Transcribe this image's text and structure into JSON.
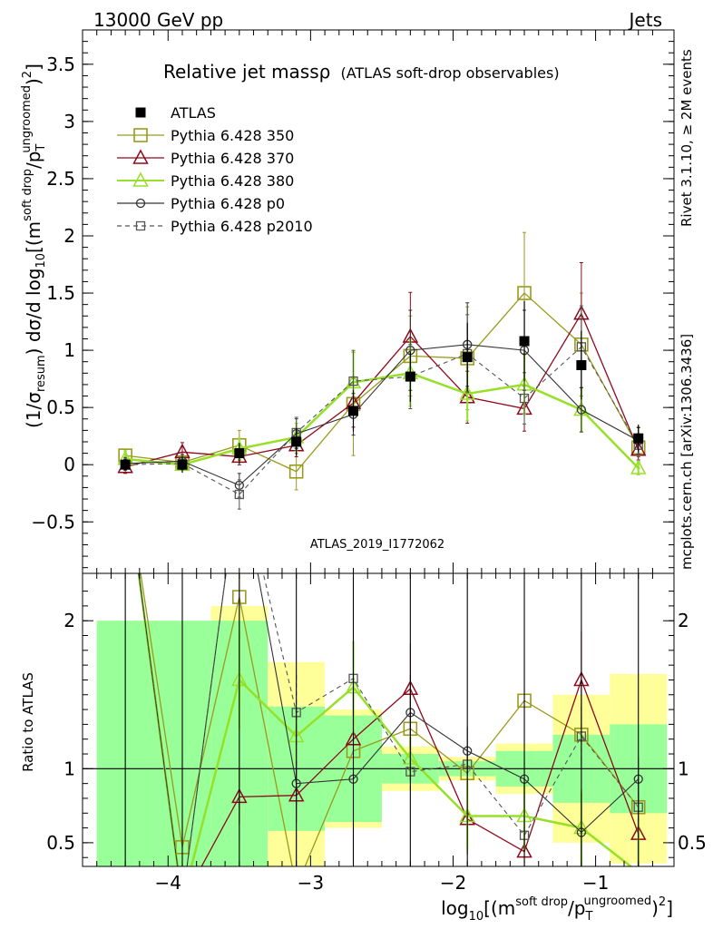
{
  "header": {
    "left": "13000 GeV pp",
    "right": "Jets"
  },
  "side": {
    "top": "Rivet 3.1.10, ≥ 2M events",
    "bottom": "mcplots.cern.ch [arXiv:1306.3436]"
  },
  "colors": {
    "atlas": "#000000",
    "p350": "#9a9a1e",
    "p370": "#8c0a1e",
    "p380": "#96e028",
    "p0": "#333333",
    "p2010": "#555555",
    "band_green": "#99ff99",
    "band_yellow": "#ffff99"
  },
  "chart_data": [
    {
      "type": "line",
      "title": "Relative jet massρ (ATLAS soft-drop observables)",
      "title_main": "Relative jet massρ",
      "title_sub": "(ATLAS soft-drop observables)",
      "ylabel": "(1/σresum) dσ/d log10[(m^(soft drop)/pT^(ungroomed))^2]",
      "ylabel_parts": {
        "a": "(1/σ",
        "a_sub": "resum",
        "b": ") dσ/d log",
        "b_sub": "10",
        "c": "[(m",
        "c_sup": "soft drop",
        "d": "/p",
        "d_sub": "T",
        "d_sup": "ungroomed",
        "e": ")",
        "e_sup": "2",
        "f": "]"
      },
      "analysis_id": "ATLAS_2019_I1772062",
      "xlim": [
        -4.6,
        -0.45
      ],
      "ylim": [
        -0.95,
        3.8
      ],
      "yticks": [
        -0.5,
        0,
        0.5,
        1,
        1.5,
        2,
        2.5,
        3,
        3.5
      ],
      "ytick_labels": [
        "−0.5",
        "0",
        "0.5",
        "1",
        "1.5",
        "2",
        "2.5",
        "3",
        "3.5"
      ],
      "x": [
        -4.3,
        -3.9,
        -3.5,
        -3.1,
        -2.7,
        -2.3,
        -1.9,
        -1.5,
        -1.1,
        -0.7
      ],
      "legend": {
        "placement": "top-left"
      },
      "series": [
        {
          "name": "ATLAS",
          "key": "atlas",
          "style": "data",
          "values": [
            0.0,
            0.0,
            0.1,
            0.2,
            0.47,
            0.77,
            0.94,
            1.08,
            0.87,
            0.23
          ],
          "errors": [
            0.05,
            0.07,
            0.09,
            0.12,
            0.18,
            0.22,
            0.3,
            0.35,
            0.3,
            0.12
          ]
        },
        {
          "name": "Pythia 6.428 350",
          "key": "p350",
          "style": "square-open",
          "values": [
            0.08,
            0.02,
            0.17,
            -0.06,
            0.53,
            0.95,
            0.93,
            1.5,
            1.05,
            0.15
          ],
          "errors": [
            0.05,
            0.07,
            0.13,
            0.16,
            0.45,
            0.35,
            0.45,
            0.53,
            0.45,
            0.18
          ]
        },
        {
          "name": "Pythia 6.428 370",
          "key": "p370",
          "style": "triangle-open",
          "values": [
            -0.02,
            0.11,
            0.07,
            0.17,
            0.54,
            1.12,
            0.59,
            0.49,
            1.32,
            0.13
          ]
        },
        {
          "name": "Pythia 6.428 380",
          "key": "p380",
          "style": "triangle-open-thick",
          "values": [
            0.05,
            0.0,
            0.14,
            0.24,
            0.72,
            0.8,
            0.62,
            0.7,
            0.48,
            -0.03
          ]
        },
        {
          "name": "Pythia 6.428 p0",
          "key": "p0",
          "style": "circle-open",
          "values": [
            0.01,
            0.03,
            -0.18,
            0.27,
            0.44,
            1.0,
            1.05,
            1.0,
            0.48,
            0.21
          ]
        },
        {
          "name": "Pythia 6.428 p2010",
          "key": "p2010",
          "style": "square-open-dashed",
          "values": [
            0.0,
            0.01,
            -0.26,
            0.28,
            0.73,
            0.77,
            0.97,
            0.58,
            1.03,
            0.17
          ]
        }
      ]
    },
    {
      "type": "line",
      "ylabel": "Ratio to ATLAS",
      "xlabel": "log10[(m^(soft drop)/pT^(ungroomed))^2]",
      "xlabel_parts": {
        "a": "log",
        "a_sub": "10",
        "b": "[(m",
        "b_sup": "soft drop",
        "c": "/p",
        "c_sub": "T",
        "c_sup": "ungroomed",
        "d": ")",
        "d_sup": "2",
        "e": "]"
      },
      "xlim": [
        -4.6,
        -0.45
      ],
      "ylim": [
        0.34,
        2.32
      ],
      "xticks": [
        -4,
        -3,
        -2,
        -1
      ],
      "xtick_labels": [
        "−4",
        "−3",
        "−2",
        "−1"
      ],
      "yticks": [
        0.5,
        1,
        2
      ],
      "ytick_labels": [
        "0.5",
        "1",
        "2"
      ],
      "bin_edges": [
        -4.5,
        -4.1,
        -3.7,
        -3.3,
        -2.9,
        -2.5,
        -2.1,
        -1.7,
        -1.3,
        -0.9,
        -0.5
      ],
      "band_green_halfwidth": [
        1.0,
        1.0,
        1.0,
        0.42,
        0.36,
        0.1,
        0.05,
        0.12,
        0.23,
        0.3
      ],
      "band_yellow_halfwidth": [
        1.0,
        1.0,
        1.1,
        0.72,
        0.4,
        0.15,
        0.08,
        0.17,
        0.5,
        0.64
      ],
      "x": [
        -4.3,
        -3.9,
        -3.5,
        -3.1,
        -2.7,
        -2.3,
        -1.9,
        -1.5,
        -1.1,
        -0.7
      ],
      "series": [
        {
          "name": "Pythia 6.428 350",
          "key": "p350",
          "values": [
            null,
            0.47,
            2.16,
            0.2,
            1.12,
            1.27,
            0.97,
            1.46,
            1.23,
            0.74
          ]
        },
        {
          "name": "Pythia 6.428 370",
          "key": "p370",
          "values": [
            null,
            null,
            0.81,
            0.82,
            1.2,
            1.54,
            0.66,
            0.44,
            1.6,
            0.56
          ]
        },
        {
          "name": "Pythia 6.428 380",
          "key": "p380",
          "values": [
            null,
            null,
            1.6,
            1.22,
            1.55,
            1.07,
            0.68,
            0.68,
            0.6,
            0.3
          ]
        },
        {
          "name": "Pythia 6.428 p0",
          "key": "p0",
          "values": [
            null,
            null,
            null,
            0.9,
            0.93,
            1.38,
            1.12,
            0.93,
            0.57,
            0.93
          ]
        },
        {
          "name": "Pythia 6.428 p2010",
          "key": "p2010",
          "values": [
            null,
            null,
            null,
            1.38,
            1.61,
            0.98,
            1.03,
            0.55,
            1.22,
            0.74
          ]
        }
      ]
    }
  ]
}
